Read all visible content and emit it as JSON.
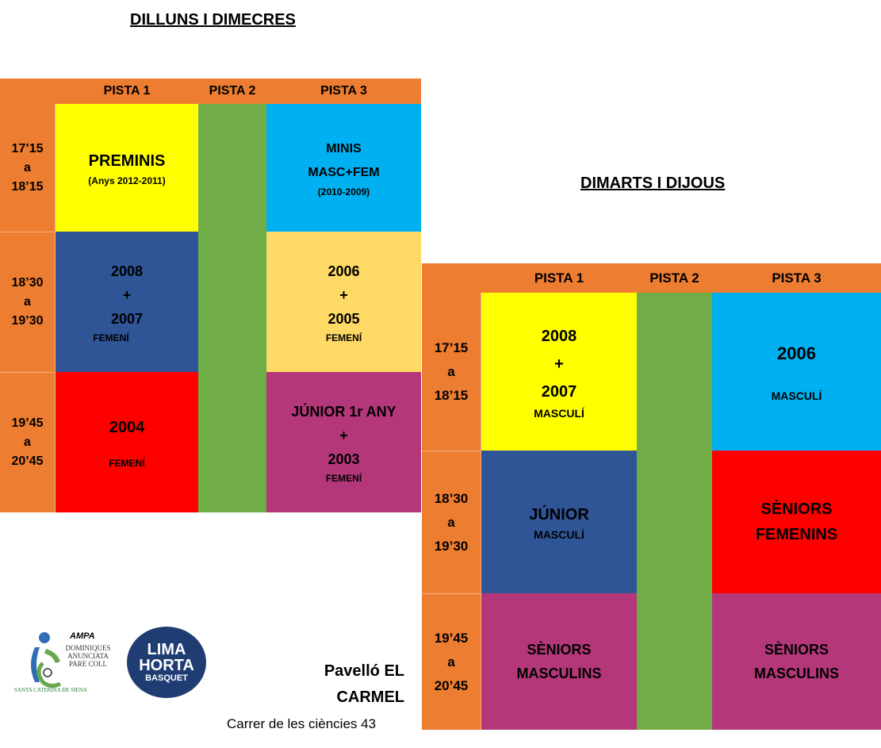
{
  "left": {
    "title": "DILLUNS I DIMECRES",
    "headers": [
      "PISTA 1",
      "PISTA 2",
      "PISTA 3"
    ],
    "times": [
      [
        "17’15",
        "a",
        "18’15"
      ],
      [
        "18’30",
        "a",
        "19’30"
      ],
      [
        "19’45",
        "a",
        "20’45"
      ]
    ],
    "pista1": [
      {
        "name": "PREMINIS",
        "sub": "(Anys 2012-2011)"
      },
      {
        "line1": "2008",
        "line2": "+",
        "line3": "2007",
        "sub": "FEMENÍ"
      },
      {
        "name": "2004",
        "sub": "FEMENÍ"
      }
    ],
    "pista3": [
      {
        "line1": "MINIS",
        "line2": "MASC+FEM",
        "sub": "(2010-2009)"
      },
      {
        "line1": "2006",
        "line2": "+",
        "line3": "2005",
        "sub": "FEMENÍ"
      },
      {
        "line1": "JÚNIOR 1r ANY",
        "line2": "+",
        "line3": "2003",
        "sub": "FEMENÍ"
      }
    ]
  },
  "right": {
    "title": "DIMARTS I DIJOUS",
    "headers": [
      "PISTA 1",
      "PISTA 2",
      "PISTA 3"
    ],
    "times": [
      [
        "17’15",
        "a",
        "18’15"
      ],
      [
        "18’30",
        "a",
        "19’30"
      ],
      [
        "19’45",
        "a",
        "20’45"
      ]
    ],
    "pista1": [
      {
        "line1": "2008",
        "line2": "+",
        "line3": "2007",
        "sub": "MASCULÍ"
      },
      {
        "name": "JÚNIOR",
        "sub": "MASCULÍ"
      },
      {
        "line1": "SÈNIORS",
        "line2": "MASCULINS"
      }
    ],
    "pista3": [
      {
        "name": "2006",
        "sub": "MASCULÍ"
      },
      {
        "line1": "SÈNIORS",
        "line2": "FEMENINS"
      },
      {
        "line1": "SÈNIORS",
        "line2": "MASCULINS"
      }
    ]
  },
  "footer": {
    "ampa_label": "AMPA",
    "school_lines": [
      "DOMINIQUES",
      "ANUNCIATA",
      "PARE COLL"
    ],
    "school_sub": "SANTA CATERINA DE SIENA",
    "club_lines": [
      "LIMA",
      "HORTA",
      "BASQUET"
    ],
    "venue_line1": "Pavelló EL",
    "venue_line2": "CARMEL",
    "address": "Carrer de les ciències 43"
  },
  "colors": {
    "orange": "#ed7d31",
    "yellow": "#ffff00",
    "green": "#70ad47",
    "cyan": "#00b0f0",
    "navy": "#2f5597",
    "peach": "#ffd966",
    "red": "#ff0000",
    "magenta": "#b4377a"
  }
}
